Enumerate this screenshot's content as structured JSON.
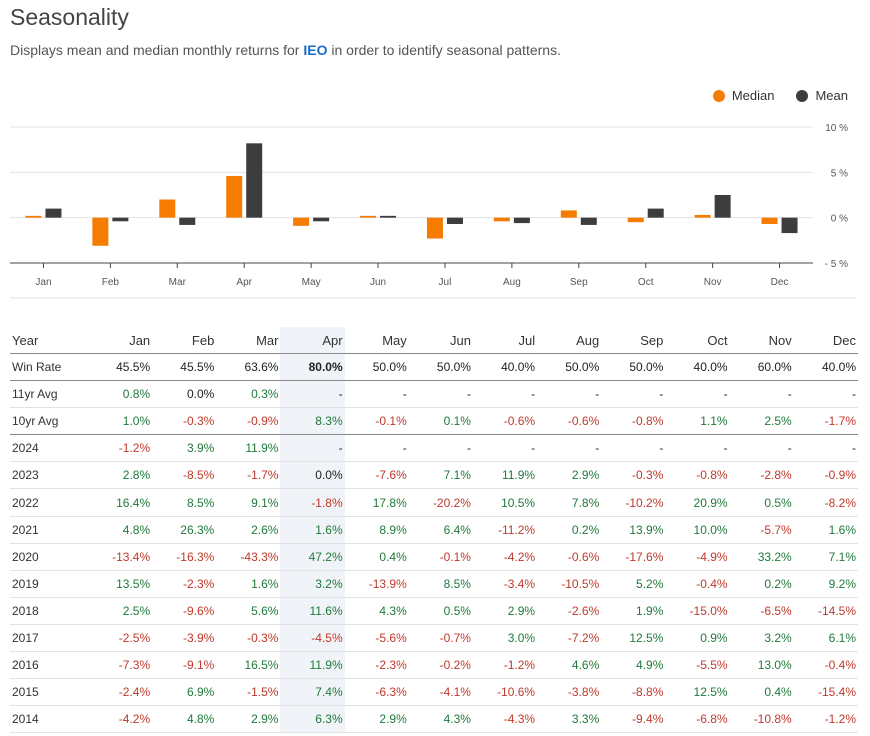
{
  "header": {
    "title": "Seasonality",
    "subtitle_pre": "Displays mean and median monthly returns for ",
    "ticker": "IEO",
    "subtitle_post": " in order to identify seasonal patterns."
  },
  "legend": [
    {
      "label": "Median",
      "color": "#f57c00"
    },
    {
      "label": "Mean",
      "color": "#3d3d40"
    }
  ],
  "chart_data": {
    "type": "bar",
    "categories": [
      "Jan",
      "Feb",
      "Mar",
      "Apr",
      "May",
      "Jun",
      "Jul",
      "Aug",
      "Sep",
      "Oct",
      "Nov",
      "Dec"
    ],
    "series": [
      {
        "name": "Median",
        "color": "#f57c00",
        "values": [
          0.2,
          -3.1,
          2.0,
          4.6,
          -0.9,
          0.2,
          -2.3,
          -0.4,
          0.8,
          -0.5,
          0.3,
          -0.7
        ]
      },
      {
        "name": "Mean",
        "color": "#3d3d40",
        "values": [
          1.0,
          -0.4,
          -0.8,
          8.2,
          -0.4,
          0.2,
          -0.7,
          -0.6,
          -0.8,
          1.0,
          2.5,
          -1.7
        ]
      }
    ],
    "yticks": [
      10,
      5,
      0,
      -5
    ],
    "ytick_labels": [
      "10 %",
      "5 %",
      "0 %",
      "- 5 %"
    ],
    "ylim": [
      -5,
      10
    ],
    "grid": true,
    "legend_position": "top-right"
  },
  "table": {
    "columns": [
      "Year",
      "Jan",
      "Feb",
      "Mar",
      "Apr",
      "May",
      "Jun",
      "Jul",
      "Aug",
      "Sep",
      "Oct",
      "Nov",
      "Dec"
    ],
    "highlight_column": 4,
    "rows": [
      {
        "label": "Win Rate",
        "bold_col": 4,
        "sep": true,
        "cells": [
          "45.5%",
          "45.5%",
          "63.6%",
          "80.0%",
          "50.0%",
          "50.0%",
          "40.0%",
          "50.0%",
          "50.0%",
          "40.0%",
          "60.0%",
          "40.0%"
        ]
      },
      {
        "label": "11yr Avg",
        "cells": [
          "0.8%",
          "0.0%",
          "0.3%",
          "-",
          "-",
          "-",
          "-",
          "-",
          "-",
          "-",
          "-",
          "-"
        ]
      },
      {
        "label": "10yr Avg",
        "sep": true,
        "cells": [
          "1.0%",
          "-0.3%",
          "-0.9%",
          "8.3%",
          "-0.1%",
          "0.1%",
          "-0.6%",
          "-0.6%",
          "-0.8%",
          "1.1%",
          "2.5%",
          "-1.7%"
        ]
      },
      {
        "label": "2024",
        "cells": [
          "-1.2%",
          "3.9%",
          "11.9%",
          "-",
          "-",
          "-",
          "-",
          "-",
          "-",
          "-",
          "-",
          "-"
        ]
      },
      {
        "label": "2023",
        "cells": [
          "2.8%",
          "-8.5%",
          "-1.7%",
          "0.0%",
          "-7.6%",
          "7.1%",
          "11.9%",
          "2.9%",
          "-0.3%",
          "-0.8%",
          "-2.8%",
          "-0.9%"
        ]
      },
      {
        "label": "2022",
        "cells": [
          "16.4%",
          "8.5%",
          "9.1%",
          "-1.8%",
          "17.8%",
          "-20.2%",
          "10.5%",
          "7.8%",
          "-10.2%",
          "20.9%",
          "0.5%",
          "-8.2%"
        ]
      },
      {
        "label": "2021",
        "cells": [
          "4.8%",
          "26.3%",
          "2.6%",
          "1.6%",
          "8.9%",
          "6.4%",
          "-11.2%",
          "0.2%",
          "13.9%",
          "10.0%",
          "-5.7%",
          "1.6%"
        ]
      },
      {
        "label": "2020",
        "cells": [
          "-13.4%",
          "-16.3%",
          "-43.3%",
          "47.2%",
          "0.4%",
          "-0.1%",
          "-4.2%",
          "-0.6%",
          "-17.6%",
          "-4.9%",
          "33.2%",
          "7.1%"
        ]
      },
      {
        "label": "2019",
        "cells": [
          "13.5%",
          "-2.3%",
          "1.6%",
          "3.2%",
          "-13.9%",
          "8.5%",
          "-3.4%",
          "-10.5%",
          "5.2%",
          "-0.4%",
          "0.2%",
          "9.2%"
        ]
      },
      {
        "label": "2018",
        "cells": [
          "2.5%",
          "-9.6%",
          "5.6%",
          "11.6%",
          "4.3%",
          "0.5%",
          "2.9%",
          "-2.6%",
          "1.9%",
          "-15.0%",
          "-6.5%",
          "-14.5%"
        ]
      },
      {
        "label": "2017",
        "cells": [
          "-2.5%",
          "-3.9%",
          "-0.3%",
          "-4.5%",
          "-5.6%",
          "-0.7%",
          "3.0%",
          "-7.2%",
          "12.5%",
          "0.9%",
          "3.2%",
          "6.1%"
        ]
      },
      {
        "label": "2016",
        "cells": [
          "-7.3%",
          "-9.1%",
          "16.5%",
          "11.9%",
          "-2.3%",
          "-0.2%",
          "-1.2%",
          "4.6%",
          "4.9%",
          "-5.5%",
          "13.0%",
          "-0.4%"
        ]
      },
      {
        "label": "2015",
        "cells": [
          "-2.4%",
          "6.9%",
          "-1.5%",
          "7.4%",
          "-6.3%",
          "-4.1%",
          "-10.6%",
          "-3.8%",
          "-8.8%",
          "12.5%",
          "0.4%",
          "-15.4%"
        ]
      },
      {
        "label": "2014",
        "cells": [
          "-4.2%",
          "4.8%",
          "2.9%",
          "6.3%",
          "2.9%",
          "4.3%",
          "-4.3%",
          "3.3%",
          "-9.4%",
          "-6.8%",
          "-10.8%",
          "-1.2%"
        ]
      }
    ]
  }
}
